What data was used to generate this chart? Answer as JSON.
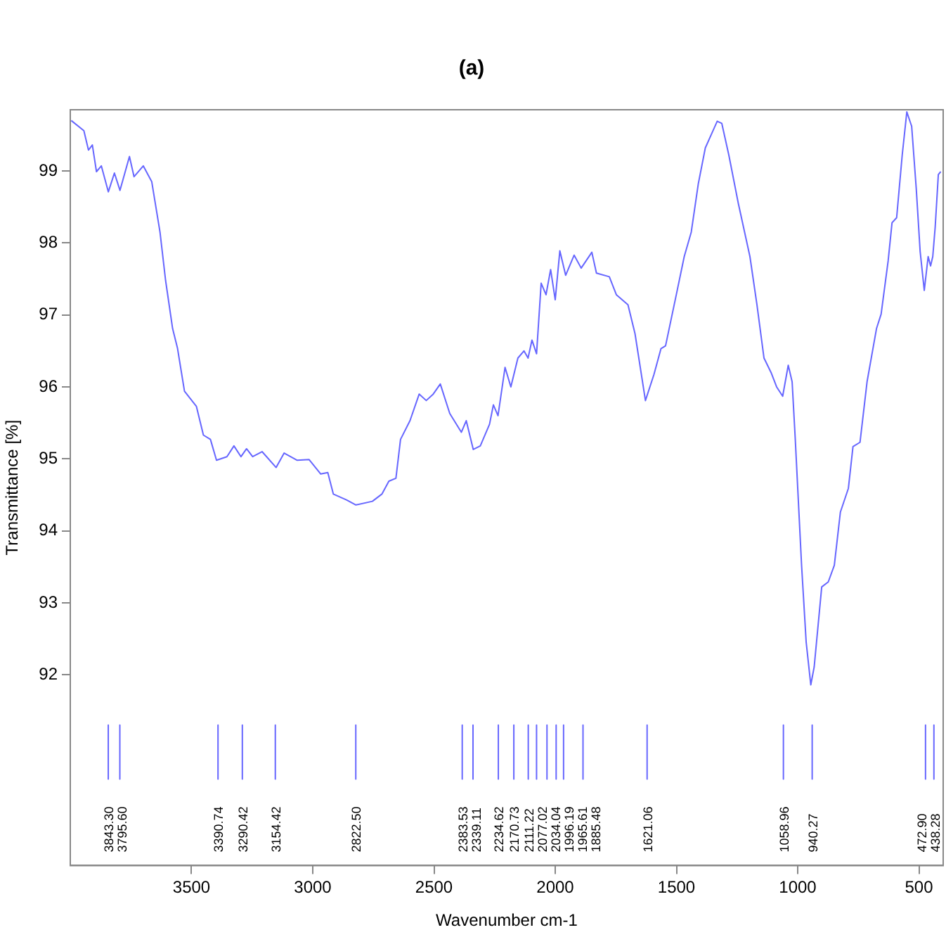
{
  "chart_data": {
    "type": "line",
    "title": "(a)",
    "xlabel": "Wavenumber cm-1",
    "ylabel": "Transmittance [%]",
    "xlim": [
      4000,
      400
    ],
    "xticks": [
      3500,
      3000,
      2500,
      2000,
      1500,
      1000,
      500
    ],
    "ylim": [
      89.35,
      99.85
    ],
    "yticks": [
      92,
      93,
      94,
      95,
      96,
      97,
      98,
      99
    ],
    "grid": false,
    "legend": false,
    "marker": "none",
    "line_style": "solid",
    "series": [
      {
        "color": "#6666ff",
        "x": [
          3996,
          3944,
          3925,
          3909,
          3892,
          3872,
          3843,
          3818,
          3795,
          3756,
          3737,
          3699,
          3664,
          3630,
          3607,
          3578,
          3558,
          3529,
          3480,
          3451,
          3422,
          3397,
          3354,
          3325,
          3296,
          3273,
          3248,
          3209,
          3151,
          3118,
          3064,
          3015,
          2967,
          2938,
          2915,
          2861,
          2822,
          2754,
          2715,
          2686,
          2657,
          2638,
          2599,
          2561,
          2532,
          2503,
          2474,
          2435,
          2387,
          2367,
          2338,
          2309,
          2271,
          2255,
          2236,
          2207,
          2183,
          2154,
          2129,
          2112,
          2096,
          2077,
          2058,
          2038,
          2019,
          2000,
          1981,
          1957,
          1922,
          1893,
          1849,
          1830,
          1777,
          1748,
          1700,
          1671,
          1628,
          1593,
          1564,
          1545,
          1497,
          1468,
          1439,
          1410,
          1381,
          1332,
          1313,
          1284,
          1245,
          1197,
          1168,
          1139,
          1110,
          1087,
          1062,
          1039,
          1023,
          1010,
          984,
          965,
          946,
          932,
          901,
          874,
          849,
          824,
          791,
          772,
          743,
          714,
          675,
          656,
          627,
          611,
          592,
          569,
          550,
          530,
          511,
          495,
          478,
          462,
          452,
          443,
          433,
          420,
          410
        ],
        "values": [
          99.7,
          99.56,
          99.29,
          99.36,
          98.99,
          99.07,
          98.71,
          98.97,
          98.73,
          99.2,
          98.92,
          99.07,
          98.85,
          98.15,
          97.48,
          96.81,
          96.54,
          95.94,
          95.73,
          95.33,
          95.27,
          94.98,
          95.03,
          95.18,
          95.03,
          95.14,
          95.03,
          95.1,
          94.88,
          95.08,
          94.98,
          94.99,
          94.79,
          94.81,
          94.51,
          94.43,
          94.36,
          94.41,
          94.51,
          94.69,
          94.73,
          95.27,
          95.53,
          95.9,
          95.81,
          95.9,
          96.04,
          95.63,
          95.37,
          95.53,
          95.13,
          95.18,
          95.48,
          95.75,
          95.6,
          96.27,
          96.0,
          96.4,
          96.5,
          96.4,
          96.65,
          96.46,
          97.44,
          97.28,
          97.63,
          97.21,
          97.89,
          97.55,
          97.83,
          97.65,
          97.87,
          97.58,
          97.53,
          97.28,
          97.14,
          96.74,
          95.81,
          96.17,
          96.53,
          96.57,
          97.34,
          97.81,
          98.15,
          98.82,
          99.32,
          99.69,
          99.66,
          99.22,
          98.55,
          97.81,
          97.14,
          96.4,
          96.2,
          96.0,
          95.87,
          96.3,
          96.07,
          95.27,
          93.52,
          92.45,
          91.86,
          92.11,
          93.22,
          93.29,
          93.52,
          94.26,
          94.59,
          95.17,
          95.23,
          96.07,
          96.81,
          97.01,
          97.75,
          98.28,
          98.35,
          99.22,
          99.82,
          99.62,
          98.75,
          97.88,
          97.34,
          97.81,
          97.68,
          97.81,
          98.22,
          98.95,
          98.99
        ]
      },
      {
        "name": "3843.30",
        "color": "#6666ff",
        "x": [
          3843.3,
          3843.3
        ],
        "values": [
          91.3,
          90.55
        ]
      },
      {
        "name": "3795.60",
        "color": "#6666ff",
        "x": [
          3795.6,
          3795.6
        ],
        "values": [
          91.3,
          90.55
        ]
      },
      {
        "name": "3390.74",
        "color": "#6666ff",
        "x": [
          3390.74,
          3390.74
        ],
        "values": [
          91.3,
          90.55
        ]
      },
      {
        "name": "3290.42",
        "color": "#6666ff",
        "x": [
          3290.42,
          3290.42
        ],
        "values": [
          91.3,
          90.55
        ]
      },
      {
        "name": "3154.42",
        "color": "#6666ff",
        "x": [
          3154.42,
          3154.42
        ],
        "values": [
          91.3,
          90.55
        ]
      },
      {
        "name": "2822.50",
        "color": "#6666ff",
        "x": [
          2822.5,
          2822.5
        ],
        "values": [
          91.3,
          90.55
        ]
      },
      {
        "name": "2383.53",
        "color": "#6666ff",
        "x": [
          2383.53,
          2383.53
        ],
        "values": [
          91.3,
          90.55
        ]
      },
      {
        "name": "2339.11",
        "color": "#6666ff",
        "x": [
          2339.11,
          2339.11
        ],
        "values": [
          91.3,
          90.55
        ]
      },
      {
        "name": "2234.62",
        "color": "#6666ff",
        "x": [
          2234.62,
          2234.62
        ],
        "values": [
          91.3,
          90.55
        ]
      },
      {
        "name": "2170.73",
        "color": "#6666ff",
        "x": [
          2170.73,
          2170.73
        ],
        "values": [
          91.3,
          90.55
        ]
      },
      {
        "name": "2111.22",
        "color": "#6666ff",
        "x": [
          2111.22,
          2111.22
        ],
        "values": [
          91.3,
          90.55
        ]
      },
      {
        "name": "2077.02",
        "color": "#6666ff",
        "x": [
          2077.02,
          2077.02
        ],
        "values": [
          91.3,
          90.55
        ]
      },
      {
        "name": "2034.04",
        "color": "#6666ff",
        "x": [
          2034.04,
          2034.04
        ],
        "values": [
          91.3,
          90.55
        ]
      },
      {
        "name": "1996.19",
        "color": "#6666ff",
        "x": [
          1996.19,
          1996.19
        ],
        "values": [
          91.3,
          90.55
        ]
      },
      {
        "name": "1965.61",
        "color": "#6666ff",
        "x": [
          1965.61,
          1965.61
        ],
        "values": [
          91.3,
          90.55
        ]
      },
      {
        "name": "1885.48",
        "color": "#6666ff",
        "x": [
          1885.48,
          1885.48
        ],
        "values": [
          91.3,
          90.55
        ]
      },
      {
        "name": "1621.06",
        "color": "#6666ff",
        "x": [
          1621.06,
          1621.06
        ],
        "values": [
          91.3,
          90.55
        ]
      },
      {
        "name": "1058.96",
        "color": "#6666ff",
        "x": [
          1058.96,
          1058.96
        ],
        "values": [
          91.3,
          90.55
        ]
      },
      {
        "name": "940.27",
        "color": "#6666ff",
        "x": [
          940.27,
          940.27
        ],
        "values": [
          91.3,
          90.55
        ]
      },
      {
        "name": "472.90",
        "color": "#6666ff",
        "x": [
          472.9,
          472.9
        ],
        "values": [
          91.3,
          90.55
        ]
      },
      {
        "name": "438.28",
        "color": "#6666ff",
        "x": [
          438.28,
          438.28
        ],
        "values": [
          91.3,
          90.55
        ]
      }
    ]
  }
}
